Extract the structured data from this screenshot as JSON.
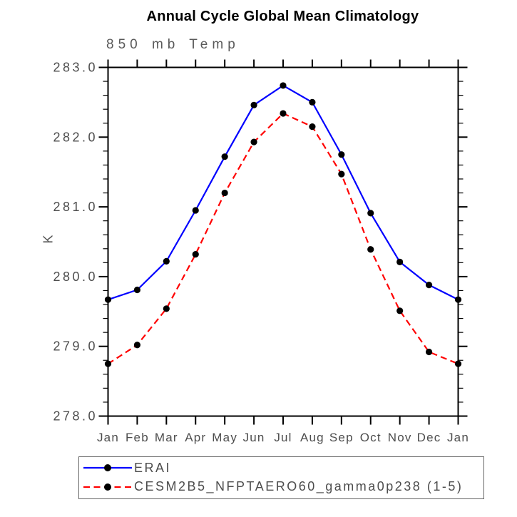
{
  "header": {
    "title": "Annual Cycle Global Mean Climatology",
    "subtitle": "850 mb Temp"
  },
  "chart_data": {
    "type": "line",
    "title": "Annual Cycle Global Mean Climatology",
    "subtitle": "850 mb Temp",
    "xlabel": "",
    "ylabel": "K",
    "ylim": [
      278.0,
      283.0
    ],
    "ytick_step": 1.0,
    "yminor_step": 0.2,
    "ytick_labels": [
      "278.0",
      "279.0",
      "280.0",
      "281.0",
      "282.0",
      "283.0"
    ],
    "categories": [
      "Jan",
      "Feb",
      "Mar",
      "Apr",
      "May",
      "Jun",
      "Jul",
      "Aug",
      "Sep",
      "Oct",
      "Nov",
      "Dec",
      "Jan"
    ],
    "grid": false,
    "legend_position": "bottom-left-outside",
    "series": [
      {
        "name": "ERAI",
        "color": "#0000ff",
        "line_style": "solid",
        "marker": "filled-circle",
        "marker_color": "#000000",
        "values": [
          279.67,
          279.81,
          280.22,
          280.95,
          281.72,
          282.46,
          282.74,
          282.5,
          281.75,
          280.91,
          280.21,
          279.88,
          279.67
        ]
      },
      {
        "name": "CESM2B5_NFPTAERO60_gamma0p238 (1-5)",
        "color": "#ff0000",
        "line_style": "dashed",
        "marker": "filled-circle",
        "marker_color": "#000000",
        "values": [
          278.75,
          279.02,
          279.54,
          280.32,
          281.2,
          281.93,
          282.34,
          282.15,
          281.47,
          280.39,
          279.51,
          278.92,
          278.75
        ]
      }
    ],
    "colors": {
      "axis": "#000000",
      "tick_label": "#4d4d4d",
      "title": "#000000",
      "subtitle": "#5a5a5a",
      "legend_border": "#666666"
    }
  }
}
